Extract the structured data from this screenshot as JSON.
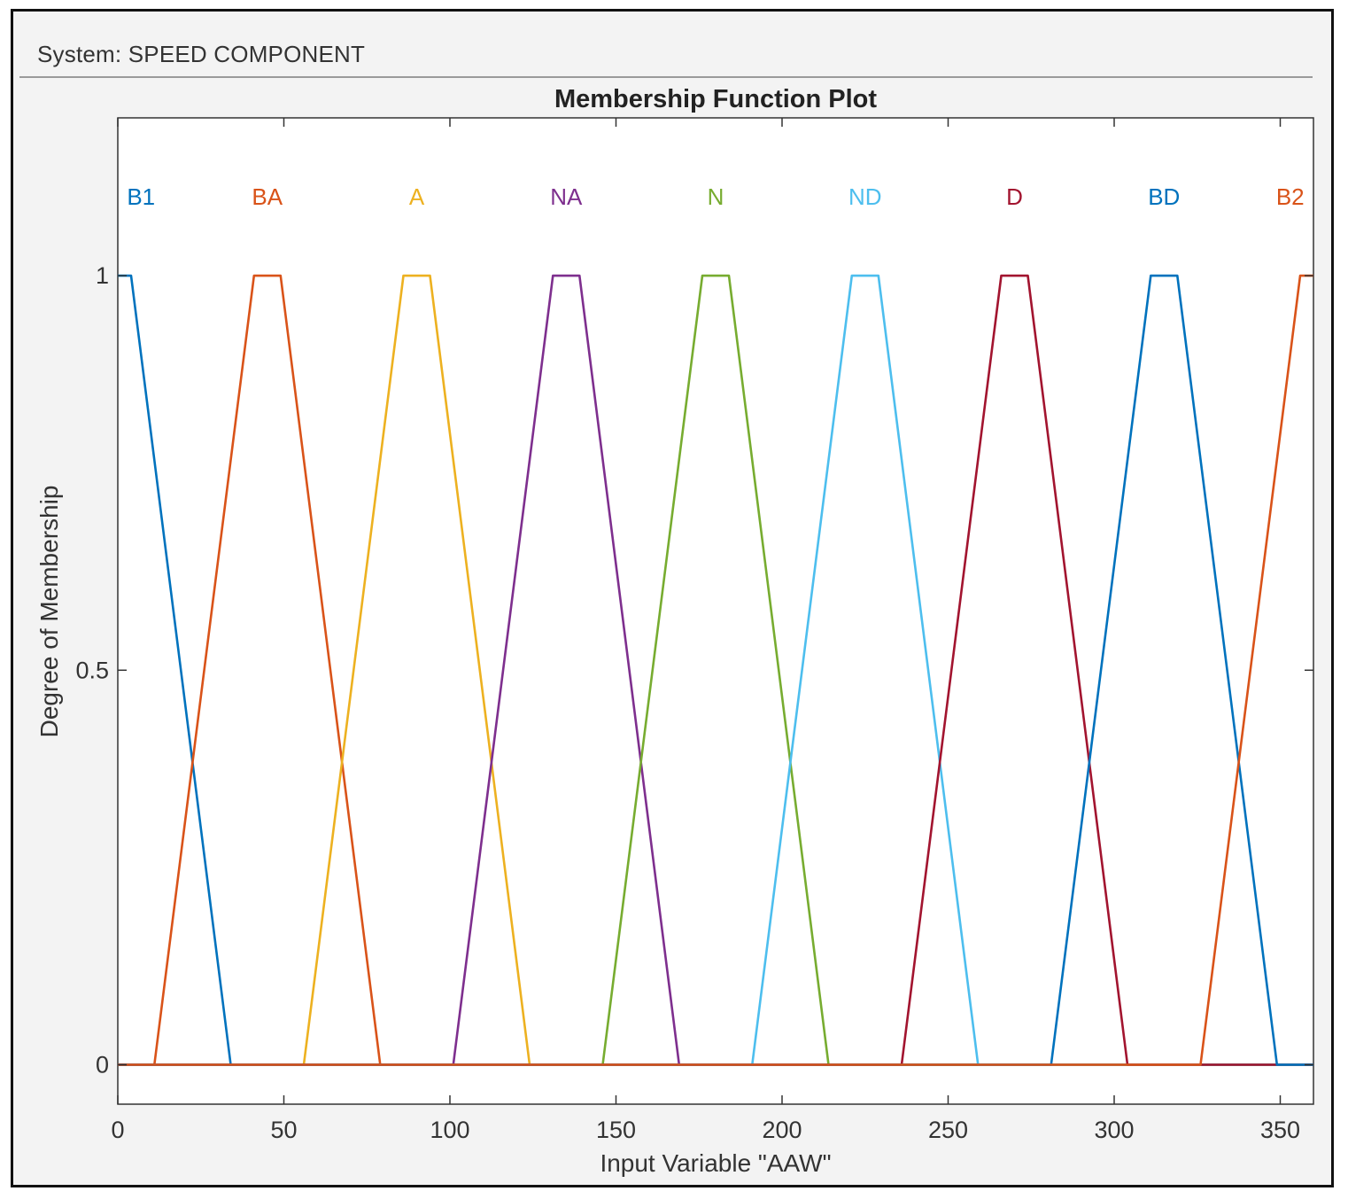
{
  "window": {
    "system_label": "System: SPEED COMPONENT"
  },
  "chart_data": {
    "type": "line",
    "title": "Membership Function Plot",
    "xlabel": "Input Variable \"AAW\"",
    "ylabel": "Degree of Membership",
    "xlim": [
      0,
      360
    ],
    "ylim": [
      -0.05,
      1.2
    ],
    "xticks": [
      0,
      50,
      100,
      150,
      200,
      250,
      300,
      350
    ],
    "xtick_labels": [
      "0",
      "50",
      "100",
      "150",
      "200",
      "250",
      "300",
      "350"
    ],
    "yticks": [
      0,
      0.5,
      1
    ],
    "ytick_labels": [
      "0",
      "0.5",
      "1"
    ],
    "grid": false,
    "legend": "none",
    "series": [
      {
        "name": "B1",
        "color": "#0072bd",
        "points": [
          [
            0,
            1
          ],
          [
            4,
            1
          ],
          [
            34,
            0
          ],
          [
            360,
            0
          ]
        ]
      },
      {
        "name": "BA",
        "color": "#d95319",
        "points": [
          [
            0,
            0
          ],
          [
            11,
            0
          ],
          [
            41,
            1
          ],
          [
            49,
            1
          ],
          [
            79,
            0
          ],
          [
            360,
            0
          ]
        ]
      },
      {
        "name": "A",
        "color": "#edb120",
        "points": [
          [
            0,
            0
          ],
          [
            56,
            0
          ],
          [
            86,
            1
          ],
          [
            94,
            1
          ],
          [
            124,
            0
          ],
          [
            360,
            0
          ]
        ]
      },
      {
        "name": "NA",
        "color": "#7e2f8e",
        "points": [
          [
            0,
            0
          ],
          [
            101,
            0
          ],
          [
            131,
            1
          ],
          [
            139,
            1
          ],
          [
            169,
            0
          ],
          [
            360,
            0
          ]
        ]
      },
      {
        "name": "N",
        "color": "#77ac30",
        "points": [
          [
            0,
            0
          ],
          [
            146,
            0
          ],
          [
            176,
            1
          ],
          [
            184,
            1
          ],
          [
            214,
            0
          ],
          [
            360,
            0
          ]
        ]
      },
      {
        "name": "ND",
        "color": "#4dbeee",
        "points": [
          [
            0,
            0
          ],
          [
            191,
            0
          ],
          [
            221,
            1
          ],
          [
            229,
            1
          ],
          [
            259,
            0
          ],
          [
            360,
            0
          ]
        ]
      },
      {
        "name": "D",
        "color": "#a2142f",
        "points": [
          [
            0,
            0
          ],
          [
            236,
            0
          ],
          [
            266,
            1
          ],
          [
            274,
            1
          ],
          [
            304,
            0
          ],
          [
            360,
            0
          ]
        ]
      },
      {
        "name": "BD",
        "color": "#0072bd",
        "points": [
          [
            0,
            0
          ],
          [
            281,
            0
          ],
          [
            311,
            1
          ],
          [
            319,
            1
          ],
          [
            349,
            0
          ],
          [
            360,
            0
          ]
        ]
      },
      {
        "name": "B2",
        "color": "#d95319",
        "points": [
          [
            0,
            0
          ],
          [
            326,
            0
          ],
          [
            356,
            1
          ],
          [
            360,
            1
          ]
        ]
      }
    ],
    "labels": [
      {
        "text": "B1",
        "x": 7,
        "color": "#0072bd"
      },
      {
        "text": "BA",
        "x": 45,
        "color": "#d95319"
      },
      {
        "text": "A",
        "x": 90,
        "color": "#edb120"
      },
      {
        "text": "NA",
        "x": 135,
        "color": "#7e2f8e"
      },
      {
        "text": "N",
        "x": 180,
        "color": "#77ac30"
      },
      {
        "text": "ND",
        "x": 225,
        "color": "#4dbeee"
      },
      {
        "text": "D",
        "x": 270,
        "color": "#a2142f"
      },
      {
        "text": "BD",
        "x": 315,
        "color": "#0072bd"
      },
      {
        "text": "B2",
        "x": 353,
        "color": "#d95319"
      }
    ],
    "label_y": 1.1
  }
}
